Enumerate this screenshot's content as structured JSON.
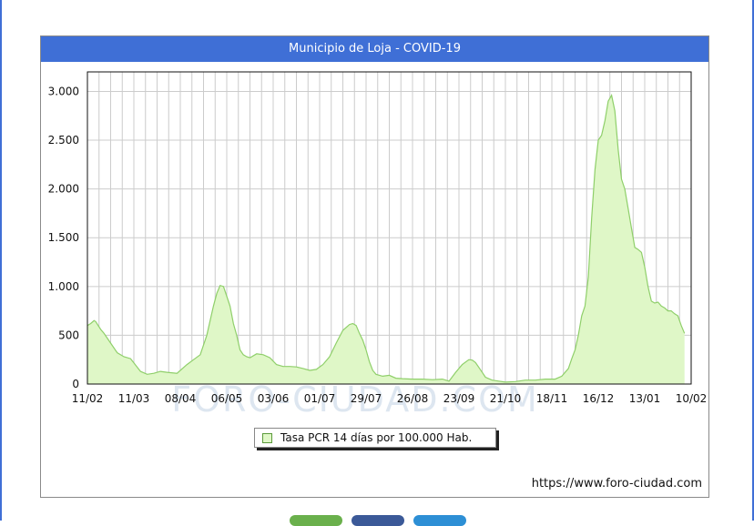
{
  "watermark": "FORO-CIUDAD.COM",
  "source_url": "https://www.foro-ciudad.com",
  "colors": {
    "title_bg": "#3f6fd6",
    "area_fill": "#dff7c7",
    "area_line": "#8fcf6a",
    "grid": "#cccccc",
    "watermark": "#dde6f0"
  },
  "chart_data": {
    "type": "area",
    "title": "Municipio de Loja - COVID-19",
    "xlabel": "",
    "ylabel": "",
    "ylim": [
      0,
      3200
    ],
    "yticks": [
      0,
      500,
      1000,
      1500,
      2000,
      2500,
      3000
    ],
    "ytick_labels": [
      "0",
      "500",
      "1.000",
      "1.500",
      "2.000",
      "2.500",
      "3.000"
    ],
    "xtick_labels": [
      "11/02",
      "11/03",
      "08/04",
      "06/05",
      "03/06",
      "01/07",
      "29/07",
      "26/08",
      "23/09",
      "21/10",
      "18/11",
      "16/12",
      "13/01",
      "10/02"
    ],
    "grid": true,
    "legend_position": "bottom-center",
    "series": [
      {
        "name": "Tasa PCR 14 días por 100.000 Hab.",
        "x_days": [
          0,
          2,
          4,
          5,
          8,
          10,
          14,
          18,
          22,
          26,
          32,
          36,
          40,
          44,
          48,
          54,
          60,
          64,
          68,
          72,
          76,
          78,
          80,
          82,
          84,
          86,
          88,
          90,
          92,
          94,
          96,
          98,
          102,
          106,
          110,
          114,
          118,
          122,
          126,
          130,
          134,
          138,
          142,
          146,
          150,
          154,
          158,
          160,
          162,
          164,
          166,
          168,
          170,
          172,
          174,
          178,
          182,
          186,
          190,
          196,
          202,
          208,
          214,
          218,
          222,
          226,
          230,
          232,
          234,
          236,
          238,
          240,
          244,
          248,
          252,
          258,
          264,
          270,
          276,
          282,
          286,
          290,
          292,
          294,
          296,
          298,
          300,
          302,
          304,
          306,
          308,
          310,
          312,
          314,
          316,
          318,
          320,
          322,
          324,
          326,
          328,
          330,
          332,
          334,
          336,
          338,
          340,
          342,
          344,
          346,
          348,
          350,
          352,
          354,
          356,
          358,
          360
        ],
        "values": [
          600,
          620,
          650,
          640,
          560,
          520,
          420,
          320,
          280,
          260,
          130,
          100,
          110,
          130,
          120,
          110,
          200,
          250,
          300,
          500,
          800,
          930,
          1010,
          1000,
          900,
          800,
          620,
          500,
          350,
          300,
          280,
          270,
          310,
          300,
          270,
          200,
          180,
          180,
          175,
          160,
          140,
          150,
          200,
          280,
          420,
          550,
          610,
          620,
          600,
          520,
          450,
          350,
          230,
          140,
          100,
          80,
          90,
          60,
          55,
          50,
          50,
          45,
          50,
          30,
          120,
          200,
          250,
          245,
          220,
          170,
          120,
          70,
          40,
          30,
          20,
          25,
          40,
          40,
          50,
          50,
          80,
          160,
          260,
          350,
          500,
          700,
          800,
          1100,
          1700,
          2200,
          2500,
          2550,
          2700,
          2900,
          2960,
          2800,
          2400,
          2100,
          2000,
          1800,
          1600,
          1400,
          1380,
          1350,
          1200,
          1000,
          850,
          830,
          840,
          800,
          780,
          750,
          750,
          720,
          700,
          600,
          520
        ]
      }
    ]
  }
}
